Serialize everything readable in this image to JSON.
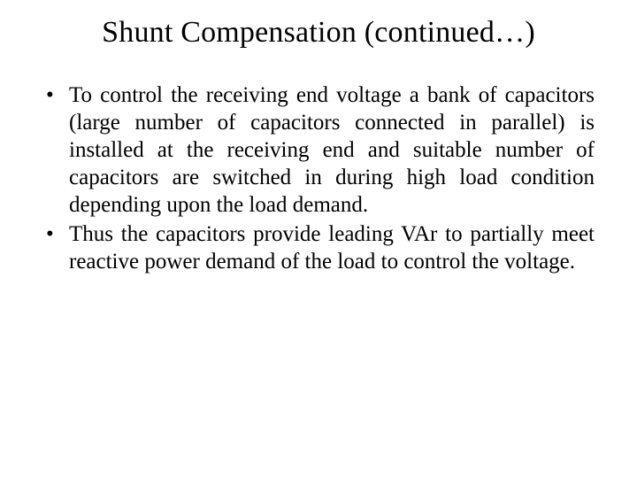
{
  "slide": {
    "title": "Shunt Compensation (continued…)",
    "bullets": [
      "To control the receiving end voltage a bank of capacitors (large number of capacitors connected in parallel) is installed at the receiving end and suitable number of capacitors are switched in during high load condition depending upon the load demand.",
      "Thus the capacitors provide leading VAr to partially meet reactive power demand of the load to control the voltage."
    ]
  },
  "style": {
    "background_color": "#ffffff",
    "text_color": "#000000",
    "font_family": "Times New Roman",
    "title_fontsize": 34,
    "body_fontsize": 25,
    "bullet_marker": "•"
  }
}
